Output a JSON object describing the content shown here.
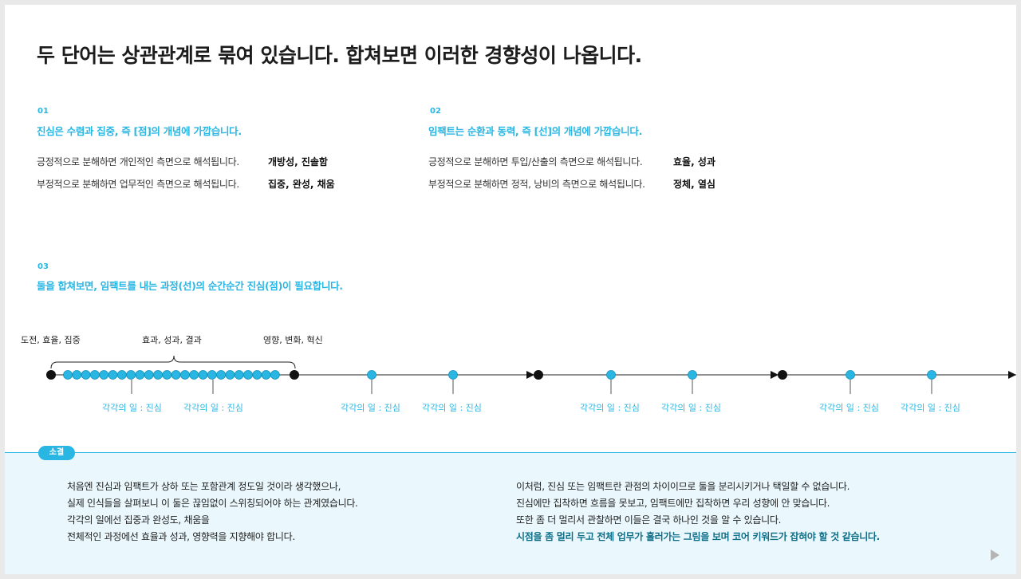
{
  "title": "두 단어는 상관관계로 묶여 있습니다. 합쳐보면 이러한 경향성이 나옵니다.",
  "sections": [
    {
      "num": "01",
      "heading": "진심은 수렴과 집중, 즉 [점]의 개념에 가깝습니다.",
      "lines": [
        {
          "text": "긍정적으로 분해하면 개인적인 측면으로 해석됩니다.",
          "keywords": "개방성, 진솔함"
        },
        {
          "text": "부정적으로 분해하면 업무적인 측면으로 해석됩니다.",
          "keywords": "집중, 완성, 채움"
        }
      ]
    },
    {
      "num": "02",
      "heading": "임팩트는 순환과 동력, 즉 [선]의 개념에 가깝습니다.",
      "lines": [
        {
          "text": "긍정적으로 분해하면 투입/산출의 측면으로 해석됩니다.",
          "keywords": "효율, 성과"
        },
        {
          "text": "부정적으로 분해하면 정적, 낭비의 측면으로 해석됩니다.",
          "keywords": "정체, 열심"
        }
      ]
    },
    {
      "num": "03",
      "heading": "둘을 합쳐보면, 임팩트를 내는 과정(선)의 순간순간 진심(점)이 필요합니다."
    }
  ],
  "timeline": {
    "start_label": "도전, 효율, 집중",
    "middle_label": "효과, 성과, 결과",
    "end_label": "영향, 변화, 혁신",
    "task_label": "각각의 일 : 진심"
  },
  "summary": {
    "badge": "소결",
    "left": [
      "처음엔 진심과 임팩트가 상하 또는 포함관계 정도일 것이라 생각했으나,",
      "실제 인식들을 살펴보니 이 둘은 끊임없이 스위칭되어야 하는 관계였습니다.",
      "각각의 일에선 집중과 완성도, 채움을",
      "전체적인 과정에선 효율과 성과, 영향력을 지향해야 합니다."
    ],
    "right": [
      "이처럼, 진심 또는 임팩트란 관점의 차이이므로 둘을 분리시키거나 택일할 수 없습니다.",
      "진심에만 집착하면 흐름을 못보고, 임팩트에만 집착하면 우리 성향에 안 맞습니다.",
      "또한 좀 더 멀리서 관찰하면 이들은 결국 하나인 것을 알 수 있습니다."
    ],
    "right_emphasis": "시점을 좀 멀리 두고 전체 업무가 흘러가는 그림을 보며 코어 키워드가 잡혀야 할 것 같습니다."
  },
  "colors": {
    "accent": "#29b6e3",
    "summary_bg": "#eaf8fd",
    "emphasis": "#0f6e87"
  },
  "icons": {
    "next": "play-triangle-icon"
  }
}
